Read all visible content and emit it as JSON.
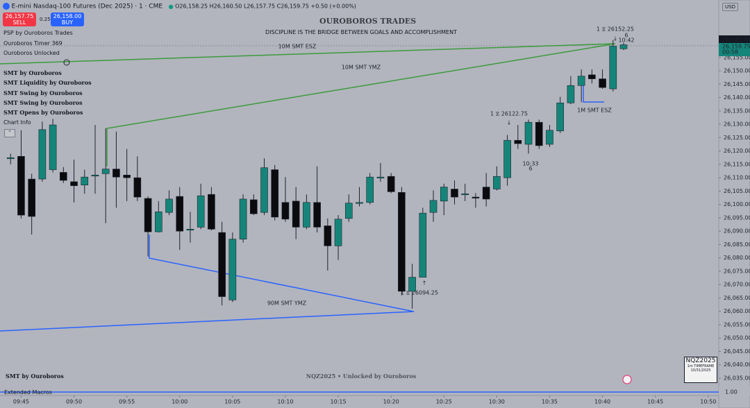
{
  "header": {
    "symbol": "E-mini Nasdaq-100 Futures (Dec 2025) · 1 · CME",
    "ohlc": "O26,158.25 H26,160.50 L26,157.75 C26,159.75 +0.50 (+0.00%)",
    "sell_price": "26,157.75",
    "sell": "SELL",
    "spread": "0.25",
    "buy_price": "26,158.00",
    "buy": "BUY",
    "currency": "USD"
  },
  "indicators": [
    "PSP by Ouroboros Trades",
    "Ouroboros Timer 369",
    "Ouroboros Unlocked"
  ],
  "smt_indicators": [
    "SMT by Ouroboros",
    "SMT Liquidity by Ouroboros",
    "SMT Swing by Ouroboros",
    "SMT Swing by Ouroboros",
    "SMT Opens by Ouroboros",
    "Chart Info"
  ],
  "banner": {
    "title": "OUROBOROS TRADES",
    "subtitle": "DISCIPLINE IS THE BRIDGE BETWEEN GOALS AND ACCOMPLISHMENT"
  },
  "annotations": {
    "smt_10m_esz": "10M SMT ESZ",
    "smt_10m_ymz": "10M SMT YMZ",
    "smt_1m_esz": "1M SMT ESZ",
    "smt_90m_ymz": "90M SMT YMZ",
    "high_mark": "1 ⧖ 26152.25",
    "mid_mark": "1 ⧖ 26122.75",
    "low_mark": "1 ⧖ 26094.25",
    "time_a": "10:33",
    "count_a": "6",
    "time_b": "10:42",
    "count_b": "6"
  },
  "footer": {
    "left": "SMT by Ouroboros",
    "center": "NQZ2025 • Unlocked by Ouroboros",
    "macros": "Extended Macros",
    "macro_value": "1.00"
  },
  "info_box": {
    "symbol": "NQZ2025",
    "timeframe": "1m TIMEFRAME",
    "date": "10/31/2025"
  },
  "price_badges": {
    "cursor": "26,165.00",
    "last": "26,159.75",
    "countdown": "00:58"
  },
  "chart_data": {
    "type": "candlestick",
    "up_color": "#15857a",
    "down_color": "#0b0b0f",
    "x": [
      "09:44",
      "09:45",
      "09:46",
      "09:47",
      "09:48",
      "09:49",
      "09:50",
      "09:51",
      "09:52",
      "09:53",
      "09:54",
      "09:55",
      "09:56",
      "09:57",
      "09:58",
      "09:59",
      "10:00",
      "10:01",
      "10:02",
      "10:03",
      "10:04",
      "10:05",
      "10:06",
      "10:07",
      "10:08",
      "10:09",
      "10:10",
      "10:11",
      "10:12",
      "10:13",
      "10:14",
      "10:15",
      "10:16",
      "10:17",
      "10:18",
      "10:19",
      "10:20",
      "10:21",
      "10:22",
      "10:23",
      "10:24",
      "10:25",
      "10:26",
      "10:27",
      "10:28",
      "10:29",
      "10:30",
      "10:31",
      "10:32",
      "10:33",
      "10:34",
      "10:35",
      "10:36",
      "10:37",
      "10:38",
      "10:39",
      "10:40",
      "10:41",
      "10:42"
    ],
    "open": [
      26117.25,
      26118,
      26109.5,
      26109.5,
      26113,
      26112,
      26108.5,
      26107.25,
      26110.75,
      26111.5,
      26113.25,
      26111,
      26110,
      26102.25,
      26089.75,
      26097,
      26103,
      26090.5,
      26091.5,
      26103.75,
      26089.5,
      26064.25,
      26087,
      26101.75,
      26097,
      26113,
      26100.75,
      26101.25,
      26091.5,
      26100.75,
      26092,
      26084.5,
      26094.75,
      26100.5,
      26100.75,
      26110,
      26110.5,
      26104.5,
      26067.5,
      26072.75,
      26097,
      26101.25,
      26105.75,
      26103.75,
      26102.75,
      26106.5,
      26105.75,
      26110,
      26124,
      26122.5,
      26130.75,
      26122.5,
      26127.5,
      26138,
      26144.5,
      26148.5,
      26147,
      26143.25,
      26158.25
    ],
    "high": [
      26119,
      26127.75,
      26111.5,
      26131,
      26132,
      26114,
      26116.75,
      26113,
      26129.75,
      26128.5,
      26127.25,
      26120.75,
      26118,
      26103,
      26101.25,
      26105.25,
      26106.5,
      26097.25,
      26107.75,
      26106.5,
      26093.5,
      26089.5,
      26103.75,
      26103.75,
      26117.25,
      26114.75,
      26110.25,
      26106.5,
      26103.75,
      26114.25,
      26094.75,
      26096,
      26103.75,
      26106.5,
      26111.75,
      26115.5,
      26111.75,
      26106.5,
      26077.75,
      26098.75,
      26105.25,
      26107.75,
      26109,
      26107.75,
      26104.25,
      26111.75,
      26114.25,
      26126,
      26129.75,
      26131.75,
      26131.75,
      26129.75,
      26140.25,
      26148,
      26150.5,
      26150.5,
      26150.5,
      26161.5,
      26160.5
    ],
    "low": [
      26115,
      26094.75,
      26088.75,
      26108.5,
      26112,
      26108,
      26100.75,
      26104,
      26104,
      26093,
      26098.75,
      26101.25,
      26101.25,
      26080.5,
      26089.5,
      26096,
      26083,
      26085.75,
      26090.75,
      26090.25,
      26062.25,
      26063.5,
      26085.75,
      26096,
      26096,
      26094,
      26093.5,
      26087,
      26090.75,
      26089.5,
      26075.25,
      26079.25,
      26093.5,
      26099.25,
      26100,
      26108.5,
      26104.25,
      26066,
      26061,
      26072.75,
      26093.5,
      26096,
      26100,
      26101.25,
      26098.75,
      26099.25,
      26105.25,
      26107,
      26120.75,
      26119,
      26120.75,
      26121.5,
      26126.75,
      26137.5,
      26138.25,
      26145.25,
      26143.25,
      26142.25,
      26157.75
    ],
    "close": [
      26117.5,
      26096,
      26095.5,
      26128,
      26129.75,
      26109,
      26107,
      26110.25,
      26111,
      26113.25,
      26110.25,
      26110,
      26102.75,
      26089.75,
      26097.25,
      26102,
      26090,
      26090.75,
      26103.25,
      26090.75,
      26065.5,
      26087,
      26102,
      26096.5,
      26113.75,
      26095.25,
      26094.5,
      26091.5,
      26100.75,
      26091.5,
      26084.5,
      26094.5,
      26100.5,
      26100.75,
      26110.25,
      26110.25,
      26104.75,
      26067.5,
      26072.75,
      26096.75,
      26101.5,
      26106.5,
      26102.75,
      26104,
      26102.5,
      26102,
      26110.5,
      26124,
      26122.75,
      26130.75,
      26122,
      26127.75,
      26138,
      26144.5,
      26148,
      26147,
      26143.75,
      26159.25,
      26159.75
    ],
    "xlim": [
      "09:43",
      "10:51"
    ],
    "xticks": [
      "09:45",
      "09:50",
      "09:55",
      "10:00",
      "10:05",
      "10:10",
      "10:15",
      "10:20",
      "10:25",
      "10:30",
      "10:35",
      "10:40",
      "10:45",
      "10:50"
    ],
    "ylim": [
      26028.5,
      26176.5
    ],
    "yticks": [
      {
        "value": 26035,
        "label": "26,035.00"
      },
      {
        "value": 26040,
        "label": "26,040.00"
      },
      {
        "value": 26045,
        "label": "26,045.00"
      },
      {
        "value": 26050,
        "label": "26,050.00"
      },
      {
        "value": 26055,
        "label": "26,055.00"
      },
      {
        "value": 26060,
        "label": "26,060.00"
      },
      {
        "value": 26065,
        "label": "26,065.00"
      },
      {
        "value": 26070,
        "label": "26,070.00"
      },
      {
        "value": 26075,
        "label": "26,075.00"
      },
      {
        "value": 26080,
        "label": "26,080.00"
      },
      {
        "value": 26085,
        "label": "26,085.00"
      },
      {
        "value": 26090,
        "label": "26,090.00"
      },
      {
        "value": 26095,
        "label": "26,095.00"
      },
      {
        "value": 26100,
        "label": "26,100.00"
      },
      {
        "value": 26105,
        "label": "26,105.00"
      },
      {
        "value": 26110,
        "label": "26,110.00"
      },
      {
        "value": 26115,
        "label": "26,115.00"
      },
      {
        "value": 26120,
        "label": "26,120.00"
      },
      {
        "value": 26125,
        "label": "26,125.00"
      },
      {
        "value": 26130,
        "label": "26,130.00"
      },
      {
        "value": 26135,
        "label": "26,135.00"
      },
      {
        "value": 26140,
        "label": "26,140.00"
      },
      {
        "value": 26145,
        "label": "26,145.00"
      },
      {
        "value": 26150,
        "label": "26,150.00"
      },
      {
        "value": 26155,
        "label": "26,155.00"
      }
    ],
    "grid": false
  }
}
